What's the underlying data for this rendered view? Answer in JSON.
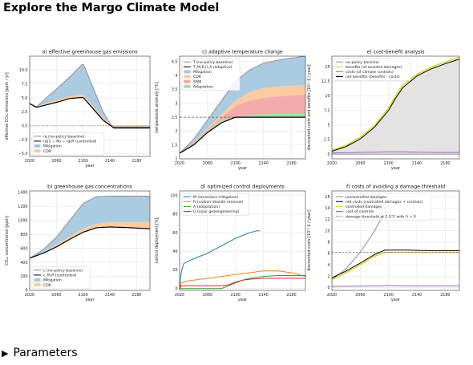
{
  "page": {
    "title": "Explore the Margo Climate Model",
    "parameters_label": "Parameters",
    "parameters_icon": "triangle-right-icon"
  },
  "colors": {
    "blue": "#1f77b4",
    "orange": "#ff7f0e",
    "green": "#2ca02c",
    "red": "#d62728",
    "purple": "#9467bd",
    "mitigation": "#a6c8e2",
    "cdr": "#fcc89a",
    "srm": "#f2a7a8",
    "adaptation": "#a8dba0",
    "gray": "#8c8c8c",
    "yellow": "#d6d62a",
    "shade": "#e2e2e2"
  },
  "chart_data": [
    {
      "id": "a",
      "type": "area",
      "title": "a)    effective greenhouse gas emissions",
      "xlabel": "year",
      "ylabel": "effective CO₂ₑ emissions [ppm / yr]",
      "xlim": [
        2020,
        2200
      ],
      "ylim": [
        -5.5,
        12.5
      ],
      "xticks": [
        2020,
        2060,
        2100,
        2140,
        2180
      ],
      "yticks": [
        -5.0,
        -2.5,
        0.0,
        2.5,
        5.0,
        7.5,
        10.0
      ],
      "ytick_labels": [
        "−5.0",
        "−2.5",
        "0.0",
        "2.5",
        "5.0",
        "7.5",
        "10.0"
      ],
      "hline": 0,
      "legend": [
        "rq (no-policy baseline)",
        "rq(1 − M) − rq₀R (controlled)",
        "Mitigation",
        "CDR"
      ],
      "legend_position": "lower-left",
      "x": [
        2020,
        2030,
        2060,
        2080,
        2100,
        2130,
        2145,
        2170,
        2200
      ],
      "baseline": [
        4.0,
        3.4,
        6.6,
        8.8,
        11.2,
        2.5,
        -0.5,
        -0.5,
        -0.5
      ],
      "after_mitigation": [
        4.0,
        3.4,
        4.6,
        5.3,
        5.6,
        1.4,
        0.0,
        0.0,
        0.0
      ],
      "controlled": [
        4.0,
        3.3,
        4.2,
        4.9,
        5.1,
        1.0,
        -0.3,
        -0.3,
        -0.3
      ]
    },
    {
      "id": "b",
      "type": "area",
      "title": "b)    greenhouse gas concentrations",
      "xlabel": "year",
      "ylabel": "CO₂ₑ concentration [ppm]",
      "xlim": [
        2020,
        2200
      ],
      "ylim": [
        0,
        1420
      ],
      "xticks": [
        2020,
        2060,
        2100,
        2140,
        2180
      ],
      "yticks": [
        0,
        200,
        400,
        600,
        800,
        1000,
        1200,
        1400
      ],
      "legend": [
        "c (no-policy baseline)",
        "c_M,R (controlled)",
        "Mitigation",
        "CDR"
      ],
      "legend_position": "lower-left",
      "x": [
        2020,
        2040,
        2060,
        2080,
        2100,
        2120,
        2140,
        2170,
        2200
      ],
      "baseline": [
        460,
        580,
        760,
        1000,
        1240,
        1340,
        1345,
        1345,
        1345
      ],
      "after_mitigation": [
        460,
        540,
        650,
        770,
        880,
        950,
        975,
        975,
        975
      ],
      "controlled": [
        460,
        530,
        620,
        730,
        830,
        895,
        905,
        895,
        880
      ]
    },
    {
      "id": "c",
      "type": "area",
      "title": "c)    adaptive temperature change",
      "xlabel": "year",
      "ylabel": "temperature anomaly [°C]",
      "xlim": [
        2020,
        2200
      ],
      "ylim": [
        1.0,
        4.7
      ],
      "xticks": [
        2020,
        2060,
        2100,
        2140,
        2180
      ],
      "yticks": [
        1.0,
        1.5,
        2.0,
        2.5,
        3.0,
        3.5,
        4.0,
        4.5
      ],
      "threshold": 2.5,
      "legend": [
        "T (no-policy baseline)",
        "T_M,R,G,A (adaptive)",
        "Mitigation",
        "CDR",
        "SRM",
        "Adaptation"
      ],
      "legend_position": "upper-left",
      "x": [
        2020,
        2040,
        2060,
        2080,
        2100,
        2120,
        2140,
        2170,
        2200
      ],
      "baseline": [
        1.2,
        1.7,
        2.4,
        3.1,
        3.8,
        4.2,
        4.45,
        4.6,
        4.7
      ],
      "after_mitigation": [
        1.2,
        1.6,
        2.1,
        2.6,
        3.1,
        3.4,
        3.55,
        3.62,
        3.65
      ],
      "after_cdr": [
        1.2,
        1.6,
        2.05,
        2.5,
        2.9,
        3.1,
        3.2,
        3.27,
        3.3
      ],
      "after_srm": [
        1.2,
        1.55,
        2.0,
        2.4,
        2.5,
        2.58,
        2.62,
        2.62,
        2.62
      ],
      "controlled": [
        1.2,
        1.5,
        1.95,
        2.3,
        2.5,
        2.5,
        2.5,
        2.5,
        2.5
      ]
    },
    {
      "id": "d",
      "type": "line",
      "title": "d)    optimized control deployments",
      "xlabel": "year",
      "ylabel": "control deployment [%]",
      "xlim": [
        2020,
        2200
      ],
      "ylim": [
        -2,
        105
      ],
      "xticks": [
        2020,
        2060,
        2100,
        2140,
        2180
      ],
      "yticks": [
        0,
        20,
        40,
        60,
        80,
        100
      ],
      "legend_position": "upper-left",
      "series": [
        {
          "name": "M (emissions mitigation)",
          "color": "blue",
          "x": [
            2020,
            2022,
            2026,
            2040,
            2060,
            2080,
            2100,
            2120,
            2130,
            2135
          ],
          "values": [
            0,
            17,
            27,
            32,
            38,
            46,
            54,
            60,
            62,
            62
          ]
        },
        {
          "name": "R (carbon dioxide removal)",
          "color": "orange",
          "x": [
            2020,
            2022,
            2030,
            2060,
            2090,
            2120,
            2140,
            2160,
            2180,
            2200
          ],
          "values": [
            0,
            6,
            8,
            11,
            14,
            17,
            19,
            19,
            17,
            13
          ]
        },
        {
          "name": "A (adaptation)",
          "color": "green",
          "x": [
            2020,
            2060,
            2080,
            2090,
            2100,
            2110,
            2120,
            2140,
            2160,
            2180,
            2200
          ],
          "values": [
            0,
            0,
            0,
            3,
            6,
            9,
            11,
            13,
            14,
            14,
            14
          ]
        },
        {
          "name": "G (solar geoengineering)",
          "color": "red",
          "x": [
            2020,
            2022,
            2060,
            2080,
            2090,
            2100,
            2110,
            2120,
            2140,
            2160,
            2180,
            2200
          ],
          "values": [
            0,
            3,
            3,
            3,
            4,
            7,
            9,
            10,
            11,
            11,
            11,
            11
          ]
        }
      ]
    },
    {
      "id": "e",
      "type": "area",
      "title": "e)                   cost-benefit analysis",
      "xlabel": "year",
      "ylabel": "discounted costs and benefits [10¹² $ / year]",
      "xlim": [
        2020,
        2200
      ],
      "ylim": [
        -0.8,
        16.8
      ],
      "xticks": [
        2020,
        2060,
        2100,
        2140,
        2180
      ],
      "yticks": [
        0.0,
        2.5,
        5.0,
        7.5,
        10.0,
        12.5,
        15.0
      ],
      "legend": [
        "no-policy baseline",
        "benefits (of avoided damages)",
        "costs (of climate controls)",
        "net benefits (benefits - costs)"
      ],
      "legend_position": "upper-left",
      "x": [
        2020,
        2040,
        2060,
        2080,
        2100,
        2110,
        2120,
        2140,
        2160,
        2180,
        2200
      ],
      "baseline": [
        0,
        0,
        0,
        0,
        0,
        0,
        0,
        0,
        0,
        0,
        0
      ],
      "benefits": [
        0.7,
        1.5,
        2.9,
        4.9,
        7.9,
        10.0,
        11.8,
        13.7,
        14.9,
        15.8,
        16.6
      ],
      "costs": [
        0.2,
        0.25,
        0.3,
        0.35,
        0.4,
        0.4,
        0.4,
        0.35,
        0.3,
        0.3,
        0.3
      ],
      "net_benefits": [
        0.5,
        1.3,
        2.6,
        4.6,
        7.5,
        9.6,
        11.4,
        13.4,
        14.6,
        15.5,
        16.3
      ]
    },
    {
      "id": "f",
      "type": "line",
      "title": "f)    costs of avoiding a damage threshold",
      "xlabel": "year",
      "ylabel": "discounted costs [10¹² $ / year]",
      "xlim": [
        2020,
        2200
      ],
      "ylim": [
        -0.5,
        17
      ],
      "xticks": [
        2020,
        2060,
        2100,
        2140,
        2180
      ],
      "yticks": [
        0,
        2,
        4,
        6,
        8,
        10,
        12,
        14,
        16
      ],
      "threshold": 6.2,
      "legend_position": "upper-left",
      "series": [
        {
          "name": "uncontrolled damages",
          "color": "gray",
          "x": [
            2020,
            2040,
            2060,
            2080,
            2090,
            2100
          ],
          "values": [
            1.4,
            3.3,
            6.2,
            9.9,
            12.2,
            14.5
          ]
        },
        {
          "name": "net costs (controlled damages + controls)",
          "color": "black",
          "x": [
            2020,
            2040,
            2060,
            2080,
            2095,
            2120,
            2160,
            2200
          ],
          "values": [
            1.7,
            2.9,
            4.3,
            5.8,
            6.6,
            6.6,
            6.5,
            6.5
          ]
        },
        {
          "name": "controlled damages",
          "color": "yellow",
          "x": [
            2020,
            2040,
            2060,
            2080,
            2095,
            2120,
            2160,
            2200
          ],
          "values": [
            1.4,
            2.6,
            4.0,
            5.5,
            6.2,
            6.2,
            6.2,
            6.2
          ]
        },
        {
          "name": "cost of controls",
          "color": "purple",
          "x": [
            2020,
            2060,
            2100,
            2140,
            2200
          ],
          "values": [
            0.2,
            0.25,
            0.35,
            0.3,
            0.3
          ]
        },
        {
          "name": "damage threshold at 2.5°C with A = 0",
          "color": "gray",
          "dashed": true,
          "x": [
            2020,
            2200
          ],
          "values": [
            6.2,
            6.2
          ]
        }
      ]
    }
  ]
}
